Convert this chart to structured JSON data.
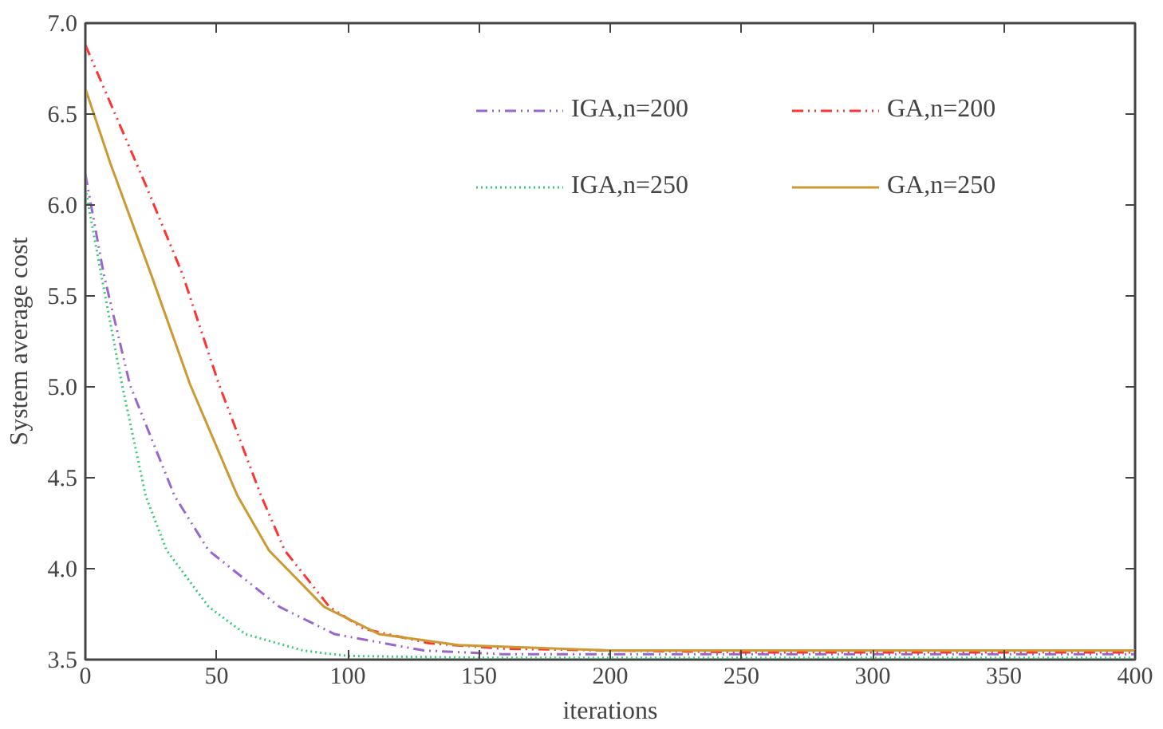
{
  "chart_data": {
    "type": "line",
    "xlabel": "iterations",
    "ylabel": "System average cost",
    "xlim": [
      0,
      400
    ],
    "xticks": [
      0,
      50,
      100,
      150,
      200,
      250,
      300,
      350,
      400
    ],
    "ylim": [
      3.5,
      7.0
    ],
    "yticks": [
      {
        "value": 3.5,
        "label": "3.5"
      },
      {
        "value": 4.0,
        "label": "4.0"
      },
      {
        "value": 4.5,
        "label": "4.5"
      },
      {
        "value": 5.0,
        "label": "5.0"
      },
      {
        "value": 5.5,
        "label": "5.5"
      },
      {
        "value": 6.0,
        "label": "6.0"
      },
      {
        "value": 6.5,
        "label": "6.5"
      },
      {
        "value": 7.0,
        "label": "7.0"
      }
    ],
    "grid": false,
    "legend": "top right",
    "marker": "none",
    "series": [
      {
        "name": "IGA,n=200",
        "color": "#9966cc",
        "line_style": "dashdot",
        "x": [
          0,
          7,
          17,
          34,
          47,
          74,
          95,
          129,
          159,
          200,
          250,
          300,
          350,
          400
        ],
        "values": [
          6.17,
          5.62,
          5.01,
          4.4,
          4.1,
          3.79,
          3.64,
          3.55,
          3.53,
          3.53,
          3.53,
          3.53,
          3.53,
          3.53
        ]
      },
      {
        "name": "IGA,n=250",
        "color": "#33cc77",
        "line_style": "dotted",
        "x": [
          0,
          6,
          14,
          23,
          31,
          47,
          61,
          83,
          100,
          150,
          200,
          250,
          300,
          350,
          400
        ],
        "values": [
          6.09,
          5.62,
          5.01,
          4.4,
          4.1,
          3.79,
          3.64,
          3.55,
          3.52,
          3.51,
          3.51,
          3.51,
          3.51,
          3.51,
          3.51
        ]
      },
      {
        "name": "GA,n=200",
        "color": "#ff3333",
        "line_style": "dashdot",
        "x": [
          0,
          23,
          37,
          51,
          67,
          76,
          93,
          106,
          131,
          159,
          200,
          250,
          300,
          350,
          400
        ],
        "values": [
          6.88,
          6.11,
          5.62,
          5.01,
          4.4,
          4.1,
          3.79,
          3.67,
          3.59,
          3.56,
          3.55,
          3.54,
          3.54,
          3.54,
          3.54
        ]
      },
      {
        "name": "GA,n=250",
        "color": "#cc9933",
        "line_style": "solid",
        "x": [
          0,
          9.5,
          25,
          40,
          58,
          70,
          91,
          112,
          142,
          200,
          250,
          300,
          350,
          400
        ],
        "values": [
          6.64,
          6.23,
          5.62,
          5.01,
          4.4,
          4.1,
          3.79,
          3.64,
          3.58,
          3.55,
          3.55,
          3.55,
          3.55,
          3.55
        ]
      }
    ]
  }
}
